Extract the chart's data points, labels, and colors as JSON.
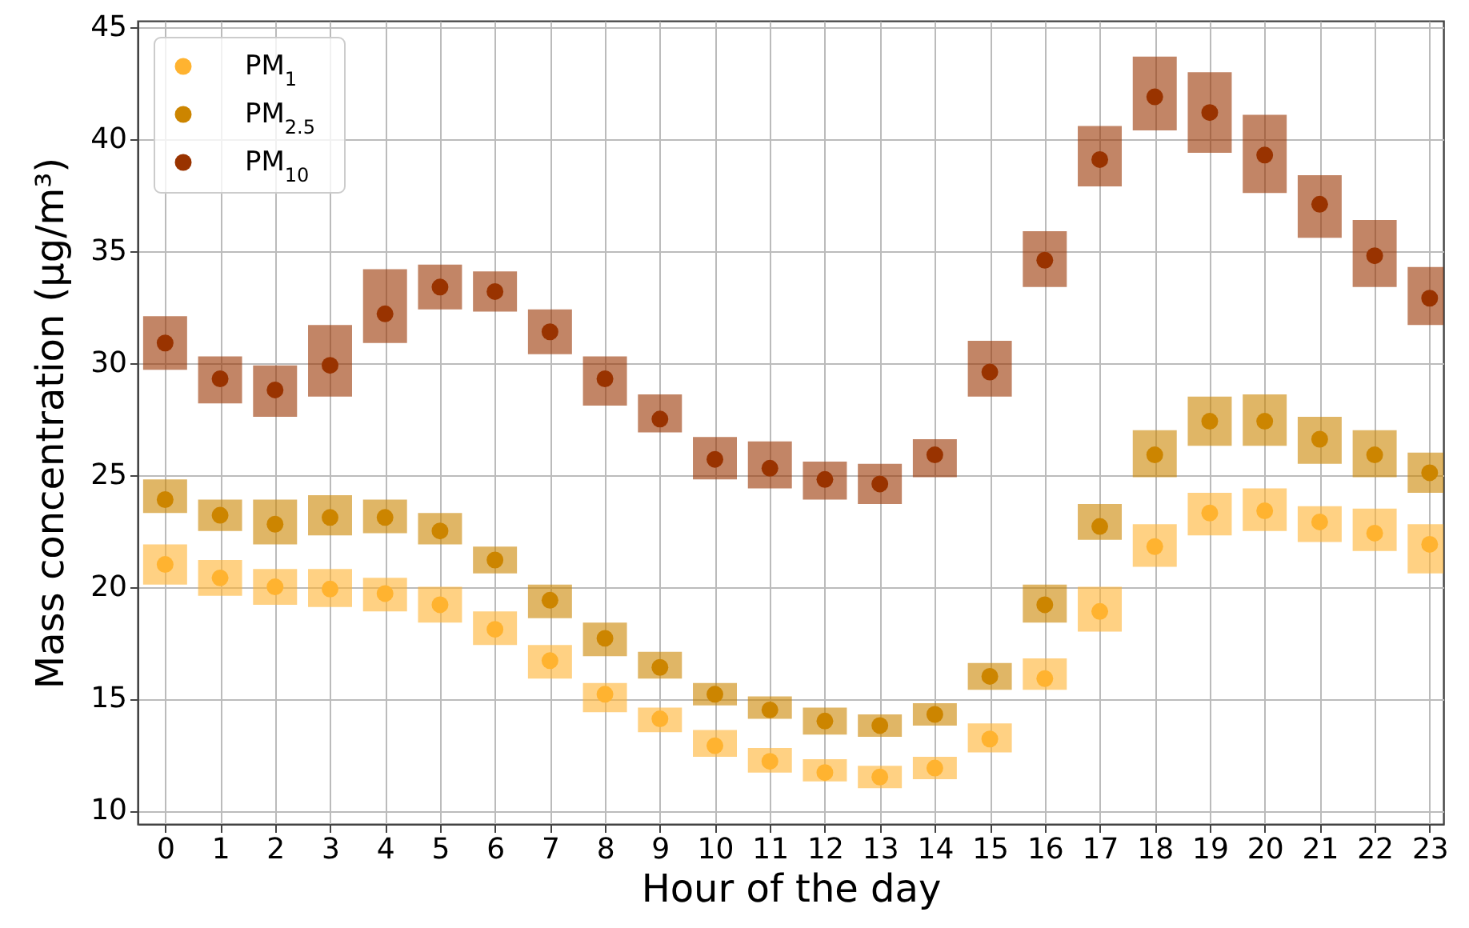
{
  "chart_data": {
    "type": "scatter",
    "xlabel": "Hour of the day",
    "ylabel": "Mass concentration (μg/m³)",
    "x": [
      0,
      1,
      2,
      3,
      4,
      5,
      6,
      7,
      8,
      9,
      10,
      11,
      12,
      13,
      14,
      15,
      16,
      17,
      18,
      19,
      20,
      21,
      22,
      23
    ],
    "xlim": [
      -0.5,
      23.25
    ],
    "xticks": [
      0,
      1,
      2,
      3,
      4,
      5,
      6,
      7,
      8,
      9,
      10,
      11,
      12,
      13,
      14,
      15,
      16,
      17,
      18,
      19,
      20,
      21,
      22,
      23
    ],
    "ylim": [
      9.4,
      45.3
    ],
    "yticks": [
      10,
      15,
      20,
      25,
      30,
      35,
      40,
      45
    ],
    "grid": true,
    "legend": "top left",
    "marker": "circle",
    "series": [
      {
        "name": "PM$_{1}$",
        "color": "#ffb330",
        "values": [
          21.0,
          20.4,
          20.0,
          19.9,
          19.7,
          19.2,
          18.1,
          16.7,
          15.2,
          14.1,
          12.9,
          12.2,
          11.7,
          11.5,
          11.9,
          13.2,
          15.9,
          18.9,
          21.8,
          23.3,
          23.4,
          22.9,
          22.4,
          21.9
        ],
        "errors": [
          [
            20.1,
            21.9
          ],
          [
            19.6,
            21.2
          ],
          [
            19.2,
            20.8
          ],
          [
            19.1,
            20.8
          ],
          [
            18.9,
            20.4
          ],
          [
            18.4,
            20.0
          ],
          [
            17.4,
            18.9
          ],
          [
            15.9,
            17.4
          ],
          [
            14.4,
            15.7
          ],
          [
            13.5,
            14.6
          ],
          [
            12.4,
            13.6
          ],
          [
            11.7,
            12.8
          ],
          [
            11.3,
            12.3
          ],
          [
            11.0,
            12.0
          ],
          [
            11.4,
            12.4
          ],
          [
            12.6,
            13.9
          ],
          [
            15.4,
            16.8
          ],
          [
            18.0,
            20.0
          ],
          [
            20.9,
            22.8
          ],
          [
            22.3,
            24.2
          ],
          [
            22.5,
            24.4
          ],
          [
            22.0,
            23.6
          ],
          [
            21.6,
            23.5
          ],
          [
            20.6,
            22.8
          ]
        ]
      },
      {
        "name": "PM$_{2.5}$",
        "color": "#cc8500",
        "values": [
          23.9,
          23.2,
          22.8,
          23.1,
          23.1,
          22.5,
          21.2,
          19.4,
          17.7,
          16.4,
          15.2,
          14.5,
          14.0,
          13.8,
          14.3,
          16.0,
          19.2,
          22.7,
          25.9,
          27.4,
          27.4,
          26.6,
          25.9,
          25.1
        ],
        "errors": [
          [
            23.3,
            24.8
          ],
          [
            22.5,
            23.9
          ],
          [
            21.9,
            23.9
          ],
          [
            22.3,
            24.1
          ],
          [
            22.4,
            23.9
          ],
          [
            21.9,
            23.3
          ],
          [
            20.6,
            21.8
          ],
          [
            18.6,
            20.1
          ],
          [
            16.9,
            18.4
          ],
          [
            15.9,
            17.1
          ],
          [
            14.7,
            15.7
          ],
          [
            14.1,
            15.1
          ],
          [
            13.4,
            14.6
          ],
          [
            13.3,
            14.3
          ],
          [
            13.8,
            14.8
          ],
          [
            15.4,
            16.6
          ],
          [
            18.4,
            20.1
          ],
          [
            22.1,
            23.7
          ],
          [
            24.9,
            27.0
          ],
          [
            26.3,
            28.5
          ],
          [
            26.3,
            28.6
          ],
          [
            25.5,
            27.6
          ],
          [
            24.9,
            27.0
          ],
          [
            24.2,
            26.0
          ]
        ]
      },
      {
        "name": "PM$_{10}$",
        "color": "#993300",
        "values": [
          30.9,
          29.3,
          28.8,
          29.9,
          32.2,
          33.4,
          33.2,
          31.4,
          29.3,
          27.5,
          25.7,
          25.3,
          24.8,
          24.6,
          25.9,
          29.6,
          34.6,
          39.1,
          41.9,
          41.2,
          39.3,
          37.1,
          34.8,
          32.9
        ],
        "errors": [
          [
            29.7,
            32.1
          ],
          [
            28.2,
            30.3
          ],
          [
            27.6,
            29.9
          ],
          [
            28.5,
            31.7
          ],
          [
            30.9,
            34.2
          ],
          [
            32.4,
            34.4
          ],
          [
            32.3,
            34.1
          ],
          [
            30.4,
            32.4
          ],
          [
            28.1,
            30.3
          ],
          [
            26.9,
            28.6
          ],
          [
            24.8,
            26.7
          ],
          [
            24.4,
            26.5
          ],
          [
            23.9,
            25.6
          ],
          [
            23.7,
            25.5
          ],
          [
            24.9,
            26.6
          ],
          [
            28.5,
            31.0
          ],
          [
            33.4,
            35.9
          ],
          [
            37.9,
            40.6
          ],
          [
            40.4,
            43.7
          ],
          [
            39.4,
            43.0
          ],
          [
            37.6,
            41.1
          ],
          [
            35.6,
            38.4
          ],
          [
            33.4,
            36.4
          ],
          [
            31.7,
            34.3
          ]
        ]
      }
    ]
  }
}
